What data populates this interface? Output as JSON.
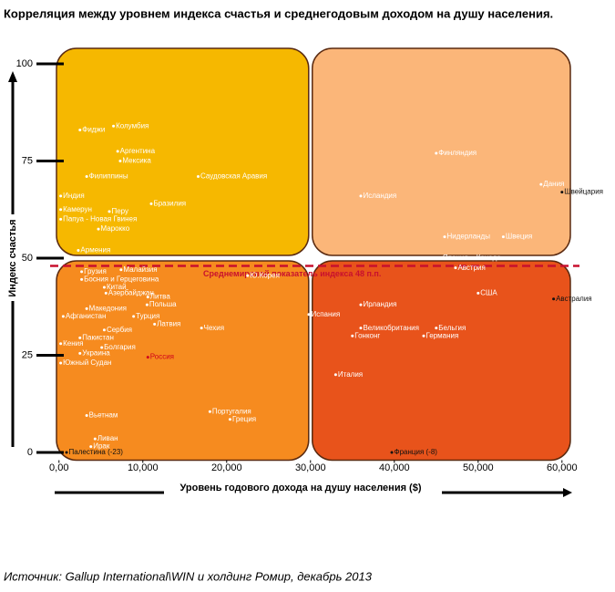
{
  "chart_data": {
    "type": "scatter",
    "title": "Корреляция между уровнем индекса счастья и среднегодовым доходом на душу населения.",
    "x_label": "Уровень годового дохода на душу населения ($)",
    "y_label": "Индекс счастья",
    "source": "Источник: Gallup International\\WIN и холдинг Ромир, декабрь 2013",
    "xlim": [
      -300,
      61000
    ],
    "ylim": [
      -2,
      104
    ],
    "xticks": [
      {
        "value": 0,
        "label": "0,00"
      },
      {
        "value": 10000,
        "label": "10,000"
      },
      {
        "value": 20000,
        "label": "20,000"
      },
      {
        "value": 30000,
        "label": "30,000"
      },
      {
        "value": 40000,
        "label": "40,000"
      },
      {
        "value": 50000,
        "label": "50,000"
      },
      {
        "value": 60000,
        "label": "60,000"
      }
    ],
    "yticks": [
      0,
      25,
      50,
      75,
      100
    ],
    "quadrant_split": {
      "x": 30000,
      "y": 50
    },
    "quadrant_colors": {
      "top_left": "#f6b800",
      "top_right": "#fbb679",
      "bottom_left": "#f68b1f",
      "bottom_right": "#e8531b"
    },
    "reference_line": {
      "value": 48,
      "label": "Среднемировой показатель индекса 48 п.п.",
      "color": "#c8102e"
    },
    "point_labels": [
      "Фиджи",
      "Колумбия",
      "Аргентина",
      "Мексика",
      "Филиппины",
      "Саудовская Аравия",
      "Индия",
      "Камерун",
      "Перу",
      "Папуа - Новая Гвинея",
      "Бразилия",
      "Марокко",
      "Армения",
      "Финляндия",
      "Исландия",
      "Дания",
      "Швейцария",
      "Нидерланды",
      "Швеция",
      "Япония",
      "Канада",
      "Австрия",
      "США",
      "Австралия",
      "Ирландия",
      "Испания",
      "Великобритания",
      "Бельгия",
      "Гонконг",
      "Германия",
      "Италия",
      "Франция (-8)",
      "Грузия",
      "Малайзия",
      "Босния и Герцеговина",
      "Китай",
      "Азербайджан",
      "Литва",
      "Польша",
      "Македония",
      "Афганистан",
      "Турция",
      "Латвия",
      "Чехия",
      "Сербия",
      "Пакистан",
      "Кения",
      "Болгария",
      "Украина",
      "Россия",
      "Южный Судан",
      "Ю.Корея",
      "Вьетнам",
      "Португалия",
      "Греция",
      "Ливан",
      "Ирак",
      "Палестина (-23)"
    ],
    "x": [
      2500,
      6500,
      7000,
      7300,
      3300,
      16600,
      200,
      200,
      6000,
      200,
      11000,
      4700,
      2300,
      45000,
      36000,
      57500,
      60000,
      46000,
      53000,
      45500,
      49500,
      47300,
      50000,
      59000,
      36000,
      29800,
      36000,
      45000,
      35000,
      43500,
      33000,
      39700,
      2700,
      7400,
      2700,
      5400,
      5600,
      10600,
      10500,
      3300,
      500,
      8900,
      11400,
      17000,
      5400,
      2500,
      200,
      5100,
      2500,
      10600,
      200,
      22500,
      3300,
      18000,
      20400,
      4300,
      3800,
      900
    ],
    "values": [
      83,
      84,
      77.5,
      75,
      71,
      71,
      66,
      62.5,
      62,
      60,
      64,
      57.5,
      52,
      77,
      66,
      69,
      67,
      55.5,
      55.5,
      50,
      50,
      47.5,
      41,
      39.5,
      38,
      35.5,
      32,
      32,
      30,
      30,
      20,
      0,
      46.5,
      47,
      44.5,
      42.5,
      41,
      40,
      38,
      37,
      35,
      35,
      33,
      32,
      31.5,
      29.5,
      28,
      27,
      25.5,
      24.5,
      23,
      45.5,
      9.5,
      10.5,
      8.5,
      3.5,
      1.5,
      0
    ],
    "point_colors": [
      "#fff",
      "#fff",
      "#fff",
      "#fff",
      "#fff",
      "#fff",
      "#fff",
      "#fff",
      "#fff",
      "#fff",
      "#fff",
      "#fff",
      "#fff",
      "#fff",
      "#fff",
      "#fff",
      "#111",
      "#fff",
      "#fff",
      "#fff",
      "#fff",
      "#fff",
      "#fff",
      "#111",
      "#fff",
      "#fff",
      "#fff",
      "#fff",
      "#fff",
      "#fff",
      "#fff",
      "#111",
      "#fff",
      "#fff",
      "#fff",
      "#fff",
      "#fff",
      "#fff",
      "#fff",
      "#fff",
      "#fff",
      "#fff",
      "#fff",
      "#fff",
      "#fff",
      "#fff",
      "#fff",
      "#fff",
      "#fff",
      "#d0021b",
      "#fff",
      "#fff",
      "#fff",
      "#fff",
      "#fff",
      "#fff",
      "#fff",
      "#111"
    ]
  }
}
